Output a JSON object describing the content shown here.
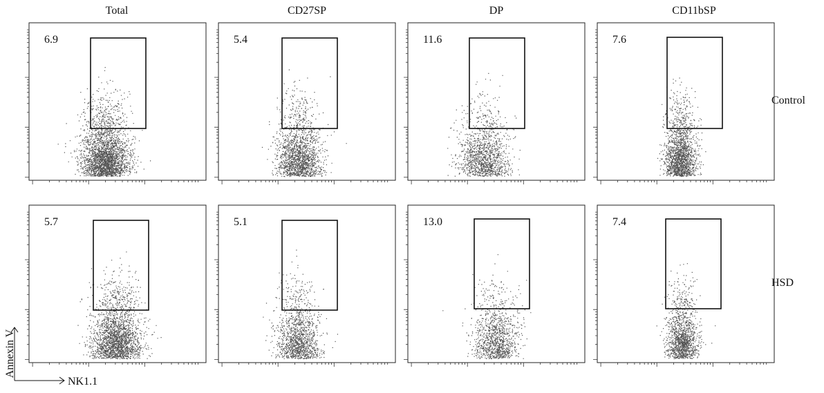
{
  "figure": {
    "columns": [
      "Total",
      "CD27SP",
      "DP",
      "CD11bSP"
    ],
    "rows": [
      "Control",
      "HSD"
    ],
    "y_axis_label": "Annexin V",
    "x_axis_label": "NK1.1"
  },
  "chart_data": {
    "type": "scatter",
    "description_type": "flow-cytometry-dot-plot-grid",
    "xlabel": "NK1.1",
    "ylabel": "Annexin V",
    "x_scale": "log",
    "y_scale": "log",
    "grid": false,
    "panels": [
      {
        "row": "Control",
        "column": "Total",
        "gate_percent": "6.9"
      },
      {
        "row": "Control",
        "column": "CD27SP",
        "gate_percent": "5.4"
      },
      {
        "row": "Control",
        "column": "DP",
        "gate_percent": "11.6"
      },
      {
        "row": "Control",
        "column": "CD11bSP",
        "gate_percent": "7.6"
      },
      {
        "row": "HSD",
        "column": "Total",
        "gate_percent": "5.7"
      },
      {
        "row": "HSD",
        "column": "CD27SP",
        "gate_percent": "5.1"
      },
      {
        "row": "HSD",
        "column": "DP",
        "gate_percent": "13.0"
      },
      {
        "row": "HSD",
        "column": "CD11bSP",
        "gate_percent": "7.4"
      }
    ]
  }
}
